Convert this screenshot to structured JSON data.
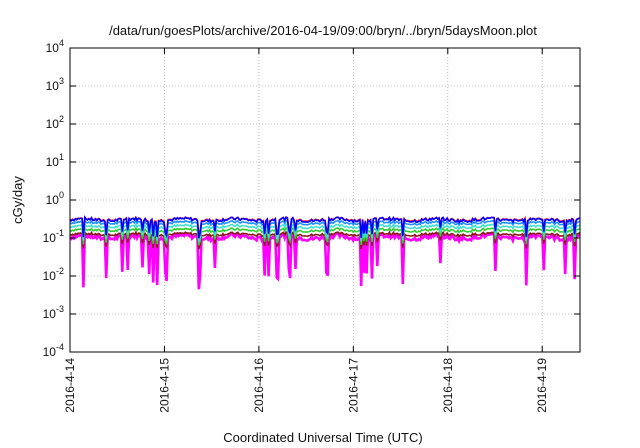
{
  "chart_data": {
    "type": "line",
    "title": "/data/run/goesPlots/archive/2016-04-19/09:00/bryn/../bryn/5daysMoon.plot",
    "xlabel": "Coordinated Universal Time (UTC)",
    "ylabel": "cGy/day",
    "yscale": "log",
    "ylim": [
      0.0001,
      10000
    ],
    "xlim_days": [
      0,
      5.4
    ],
    "grid": true,
    "legend": "none",
    "y_ticks": [
      {
        "base": "10",
        "exp": "-4"
      },
      {
        "base": "10",
        "exp": "-3"
      },
      {
        "base": "10",
        "exp": "-2"
      },
      {
        "base": "10",
        "exp": "-1"
      },
      {
        "base": "10",
        "exp": "0"
      },
      {
        "base": "10",
        "exp": "1"
      },
      {
        "base": "10",
        "exp": "2"
      },
      {
        "base": "10",
        "exp": "3"
      },
      {
        "base": "10",
        "exp": "4"
      }
    ],
    "x_ticks": [
      "2016-4-14",
      "2016-4-15",
      "2016-4-16",
      "2016-4-17",
      "2016-4-18",
      "2016-4-19"
    ],
    "series": [
      {
        "color": "#ff00ff",
        "base": 0.105
      },
      {
        "color": "#8b1a1a",
        "base": 0.125
      },
      {
        "color": "#32cd32",
        "base": 0.16
      },
      {
        "color": "#40e0d0",
        "base": 0.2
      },
      {
        "color": "#1e90ff",
        "base": 0.25
      },
      {
        "color": "#ff2020",
        "base": 0.31
      },
      {
        "color": "#0000ff",
        "base": 0.3
      }
    ]
  }
}
